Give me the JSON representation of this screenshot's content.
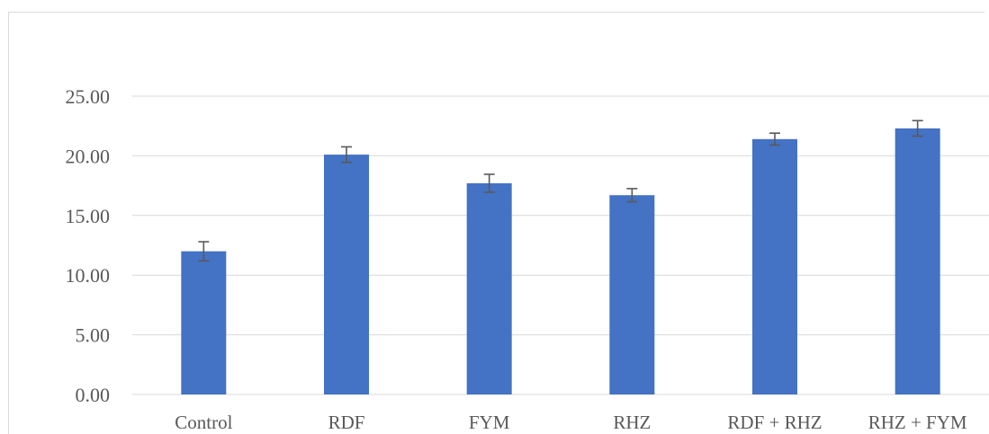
{
  "chart_data": {
    "type": "bar",
    "title": "",
    "xlabel": "",
    "ylabel": "",
    "categories": [
      "Control",
      "RDF",
      "FYM",
      "RHZ",
      "RDF + RHZ",
      "RHZ + FYM"
    ],
    "values": [
      12.0,
      20.1,
      17.7,
      16.7,
      21.4,
      22.3
    ],
    "error": [
      0.8,
      0.65,
      0.75,
      0.55,
      0.5,
      0.65
    ],
    "ylim": [
      0,
      25
    ],
    "yticks": [
      "0.00",
      "5.00",
      "10.00",
      "15.00",
      "20.00",
      "25.00"
    ],
    "grid": true,
    "legend": "none",
    "bar_color": "#4472c4",
    "error_bar_color": "#595959",
    "gridline_color": "#d9d9d9"
  }
}
